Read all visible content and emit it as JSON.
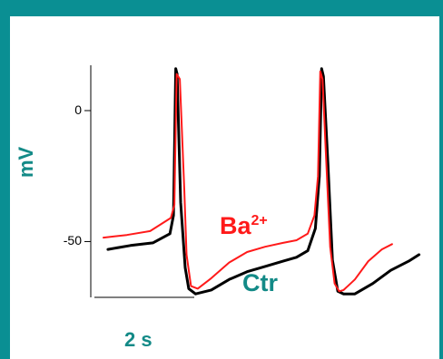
{
  "colors": {
    "frame": "#0a8f93",
    "background": "#ffffff",
    "control": "#000000",
    "barium": "#ff1a1a",
    "teal_text": "#138a87"
  },
  "chart_data": {
    "type": "line",
    "title": "",
    "xlabel": "",
    "ylabel": "mV",
    "ylim": [
      -72,
      18
    ],
    "xlim": [
      0,
      7.2
    ],
    "y_ticks": [
      0,
      -50
    ],
    "y_tick_labels": [
      "0",
      "-50"
    ],
    "grid": false,
    "scale_bar": {
      "label": "2 s",
      "seconds": 2
    },
    "labels": {
      "barium": "Ba",
      "barium_sup": "2+",
      "control": "Ctr"
    },
    "series": [
      {
        "name": "Ba2+",
        "color": "#ff1a1a",
        "x": [
          0.0,
          0.52,
          1.04,
          1.5,
          1.58,
          1.63,
          1.7,
          1.8,
          1.85,
          1.95,
          2.1,
          2.4,
          2.8,
          3.2,
          3.6,
          4.0,
          4.3,
          4.55,
          4.7,
          4.78,
          4.83,
          4.88,
          4.95,
          5.05,
          5.15,
          5.25,
          5.35,
          5.6,
          5.9,
          6.2,
          6.43
        ],
        "y": [
          -48.5,
          -47.5,
          -46,
          -41,
          -36,
          14,
          12,
          -30,
          -55,
          -67,
          -68,
          -64,
          -58,
          -54,
          -52,
          -50.5,
          -49.5,
          -47,
          -40,
          -25,
          15,
          12,
          -15,
          -52,
          -66,
          -69,
          -68.5,
          -64.5,
          -57.5,
          -53,
          -51
        ]
      },
      {
        "name": "Ctr",
        "color": "#000000",
        "x": [
          0.1,
          0.6,
          1.1,
          1.48,
          1.56,
          1.61,
          1.64,
          1.72,
          1.82,
          1.9,
          2.05,
          2.4,
          2.8,
          3.2,
          3.6,
          4.0,
          4.3,
          4.55,
          4.72,
          4.81,
          4.86,
          4.9,
          5.0,
          5.1,
          5.22,
          5.35,
          5.6,
          6.0,
          6.4,
          6.8,
          7.03
        ],
        "y": [
          -53,
          -51.5,
          -50.5,
          -47,
          -40,
          16,
          14,
          -35,
          -60,
          -68,
          -70,
          -68.5,
          -64.5,
          -61.5,
          -59.5,
          -57.5,
          -56,
          -53.5,
          -45,
          -25,
          16,
          13,
          -20,
          -57,
          -69,
          -70,
          -70,
          -66,
          -61,
          -57.5,
          -55
        ]
      }
    ]
  }
}
